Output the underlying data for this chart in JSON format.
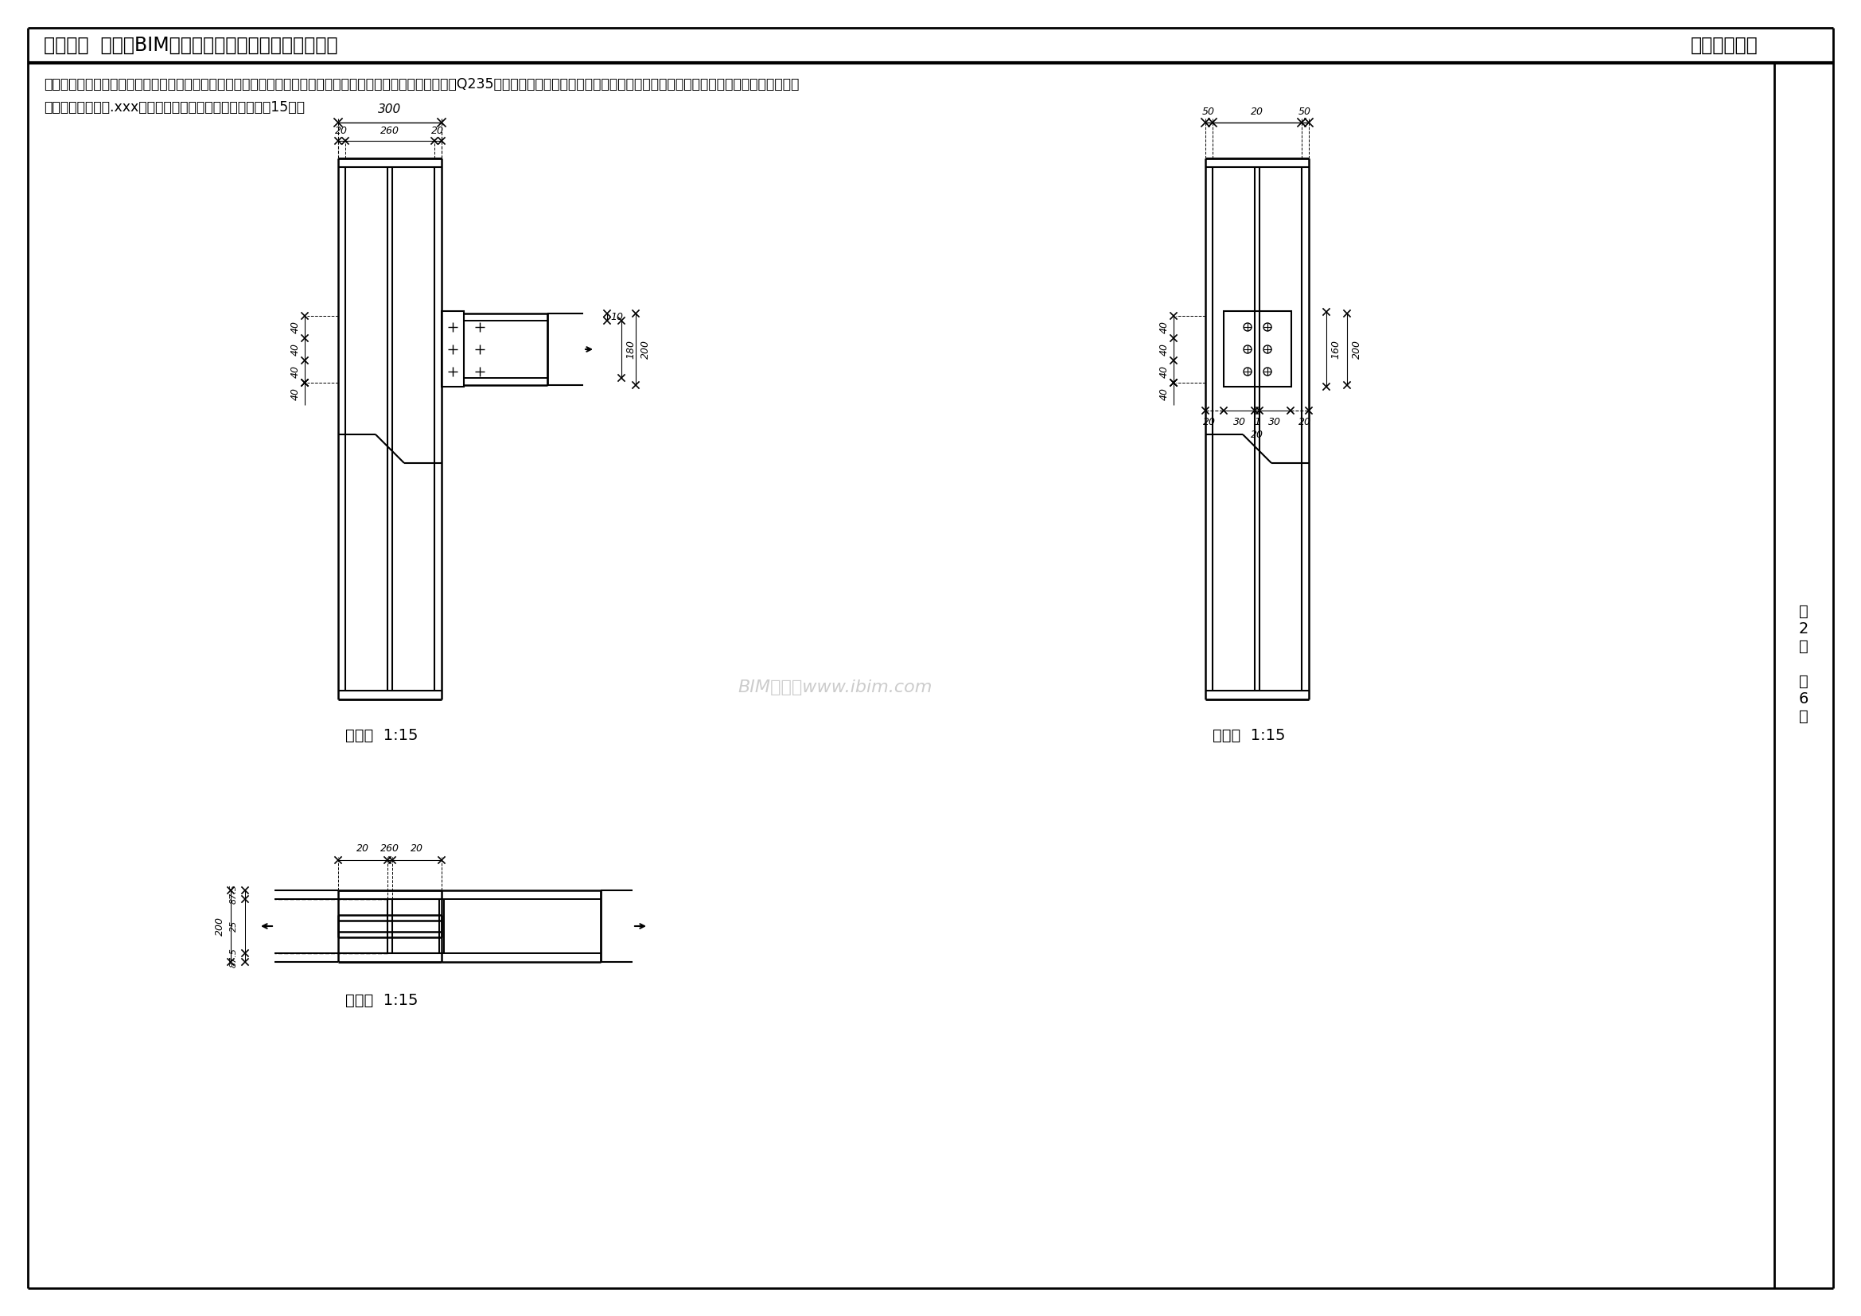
{
  "title_left": "第十三期  「全国BIM技能等级考试」二级（结构）试题",
  "title_right": "中国图学学会",
  "desc1": "二、根据如下图纸及尺寸，创建工字锂及其节点模型。工字锂的长度及其他未标注尺寸取合理值即可，锂材强度取Q235，螺栓尺寸自行选择合理值（螺栓及螺母外轮廓之间应留有一定空隙）。请将模型文",
  "desc2": "件以「工字锂节点.xxx」为文件名保存到考生文件夹中。（15分）",
  "front_view_label": "主视图  1:15",
  "right_view_label": "右视图  1:15",
  "top_view_label": "俧视图  1:15",
  "page_info": "第\n2\n页\n\n共\n6\n页",
  "watermark": "BIM考试题www.ibim.com",
  "bg_color": "#ffffff",
  "line_color": "#000000",
  "text_color": "#000000"
}
